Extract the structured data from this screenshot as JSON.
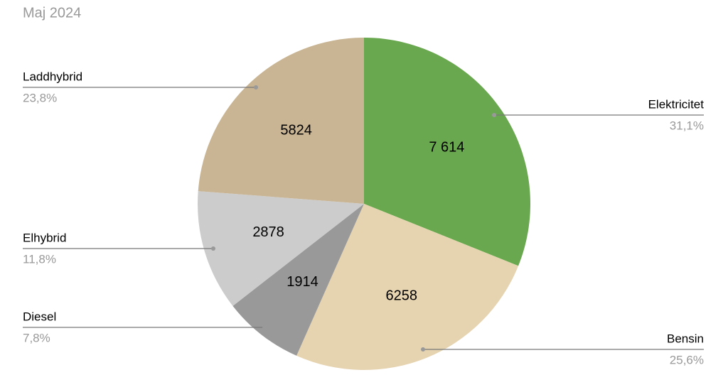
{
  "chart_data": {
    "type": "pie",
    "title": "Maj 2024",
    "categories": [
      "Elektricitet",
      "Bensin",
      "Diesel",
      "Elhybrid",
      "Laddhybrid"
    ],
    "values": [
      7614,
      6258,
      1914,
      2878,
      5824
    ],
    "value_labels": [
      "7 614",
      "6258",
      "1914",
      "2878",
      "5824"
    ],
    "percent_labels": [
      "31,1%",
      "25,6%",
      "7,8%",
      "11,8%",
      "23,8%"
    ],
    "colors": [
      "#6aa84f",
      "#e6d3b0",
      "#999999",
      "#cccccc",
      "#c9b594"
    ]
  }
}
